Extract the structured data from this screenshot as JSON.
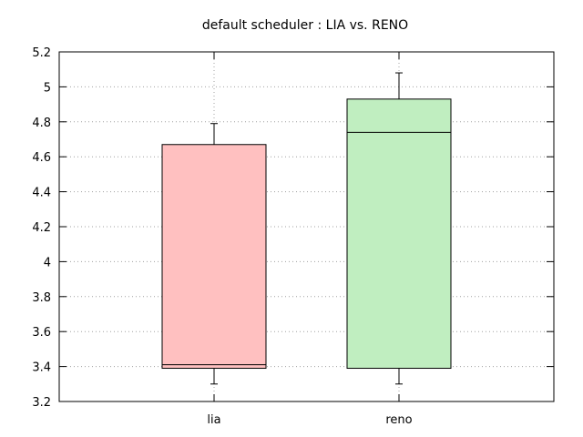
{
  "chart_data": {
    "type": "box",
    "title": "default scheduler : LIA vs. RENO",
    "xlabel": "",
    "ylabel": "",
    "ylim": [
      3.2,
      5.2
    ],
    "yticks": [
      3.2,
      3.4,
      3.6,
      3.8,
      4,
      4.2,
      4.4,
      4.6,
      4.8,
      5,
      5.2
    ],
    "ytick_labels": [
      "3.2",
      "3.4",
      "3.6",
      "3.8",
      "4",
      "4.2",
      "4.4",
      "4.6",
      "4.8",
      "5",
      "5.2"
    ],
    "grid": true,
    "legend": "none",
    "categories": [
      "lia",
      "reno"
    ],
    "series": [
      {
        "category": "lia",
        "min": 3.3,
        "q1": 3.39,
        "median": 3.41,
        "q3": 4.67,
        "max": 4.79,
        "color": "#ffc0c0"
      },
      {
        "category": "reno",
        "min": 3.3,
        "q1": 3.39,
        "median": 4.74,
        "q3": 4.93,
        "max": 5.08,
        "color": "#c0eec0"
      }
    ]
  }
}
